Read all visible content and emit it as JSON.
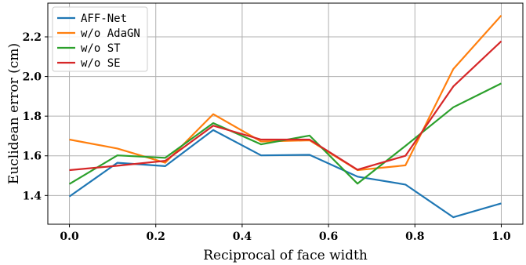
{
  "chart_data": {
    "type": "line",
    "title": "",
    "xlabel": "Reciprocal of face width",
    "ylabel": "Euclidean error (cm)",
    "xlim": [
      -0.05,
      1.05
    ],
    "ylim": [
      1.255,
      2.37
    ],
    "xticks": [
      0.0,
      0.2,
      0.4,
      0.6,
      0.8,
      1.0
    ],
    "xtick_labels": [
      "0.0",
      "0.2",
      "0.4",
      "0.6",
      "0.8",
      "1.0"
    ],
    "yticks": [
      1.4,
      1.6,
      1.8,
      2.0,
      2.2
    ],
    "ytick_labels": [
      "1.4",
      "1.6",
      "1.8",
      "2.0",
      "2.2"
    ],
    "grid": true,
    "legend_position": "top-left",
    "x": [
      0.0,
      0.111,
      0.222,
      0.333,
      0.444,
      0.556,
      0.667,
      0.778,
      0.889,
      1.0
    ],
    "series": [
      {
        "name": "AFF-Net",
        "color": "#1f77b4",
        "values": [
          1.395,
          1.565,
          1.548,
          1.73,
          1.602,
          1.605,
          1.495,
          1.455,
          1.29,
          1.36
        ]
      },
      {
        "name": "w/o AdaGN",
        "color": "#ff7f0e",
        "values": [
          1.682,
          1.637,
          1.565,
          1.81,
          1.672,
          1.678,
          1.528,
          1.552,
          2.038,
          2.308
        ]
      },
      {
        "name": "w/o ST",
        "color": "#2ca02c",
        "values": [
          1.458,
          1.602,
          1.59,
          1.765,
          1.658,
          1.702,
          1.46,
          1.65,
          1.845,
          1.965
        ]
      },
      {
        "name": "w/o SE",
        "color": "#d62728",
        "values": [
          1.528,
          1.55,
          1.575,
          1.752,
          1.682,
          1.682,
          1.53,
          1.6,
          1.95,
          2.178
        ]
      }
    ]
  }
}
